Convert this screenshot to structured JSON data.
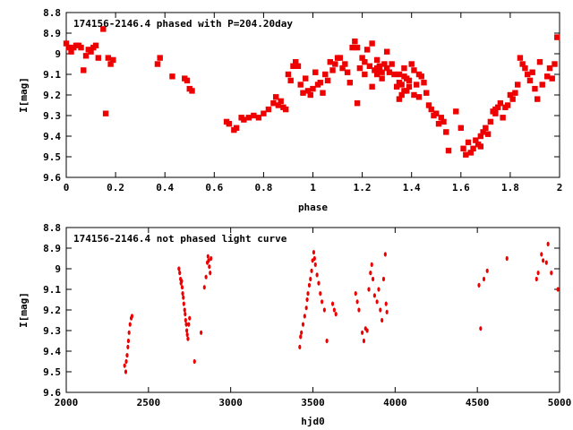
{
  "chart_data": [
    {
      "type": "scatter",
      "title": "174156-2146.4 phased with P=204.20day",
      "xlabel": "phase",
      "ylabel": "I[mag]",
      "xlim": [
        0,
        2
      ],
      "ylim": [
        8.8,
        9.6
      ],
      "y_inverted": true,
      "x_ticks": [
        "0",
        "0.2",
        "0.4",
        "0.6",
        "0.8",
        "1",
        "1.2",
        "1.4",
        "1.6",
        "1.8",
        "2"
      ],
      "y_ticks": [
        "8.8",
        "8.9",
        "9",
        "9.1",
        "9.2",
        "9.3",
        "9.4",
        "9.5",
        "9.6"
      ],
      "grid": false,
      "color": "#ee0000",
      "series": [
        {
          "points": [
            [
              0.0,
              8.95
            ],
            [
              0.01,
              8.97
            ],
            [
              0.02,
              8.99
            ],
            [
              0.03,
              8.97
            ],
            [
              0.05,
              8.96
            ],
            [
              0.06,
              8.97
            ],
            [
              0.07,
              9.08
            ],
            [
              0.09,
              8.98
            ],
            [
              0.11,
              8.97
            ],
            [
              0.13,
              9.02
            ],
            [
              0.15,
              8.88
            ],
            [
              0.16,
              9.29
            ],
            [
              0.17,
              9.02
            ],
            [
              0.18,
              9.05
            ],
            [
              0.19,
              9.03
            ],
            [
              0.37,
              9.05
            ],
            [
              0.38,
              9.02
            ],
            [
              0.43,
              9.11
            ],
            [
              0.48,
              9.12
            ],
            [
              0.49,
              9.13
            ],
            [
              0.5,
              9.17
            ],
            [
              0.51,
              9.18
            ],
            [
              0.65,
              9.33
            ],
            [
              0.66,
              9.34
            ],
            [
              0.68,
              9.37
            ],
            [
              0.69,
              9.36
            ],
            [
              0.71,
              9.31
            ],
            [
              0.72,
              9.32
            ],
            [
              0.74,
              9.31
            ],
            [
              0.76,
              9.3
            ],
            [
              0.78,
              9.31
            ],
            [
              0.8,
              9.29
            ],
            [
              0.85,
              9.21
            ],
            [
              0.86,
              9.25
            ],
            [
              0.87,
              9.23
            ],
            [
              0.88,
              9.26
            ],
            [
              0.89,
              9.27
            ],
            [
              0.9,
              9.1
            ],
            [
              0.91,
              9.13
            ],
            [
              0.92,
              9.06
            ],
            [
              0.93,
              9.04
            ],
            [
              0.94,
              9.06
            ],
            [
              0.96,
              9.19
            ],
            [
              0.98,
              9.18
            ],
            [
              1.0,
              9.17
            ],
            [
              1.02,
              9.15
            ],
            [
              1.03,
              9.14
            ],
            [
              1.05,
              9.1
            ],
            [
              1.07,
              9.04
            ],
            [
              1.09,
              9.05
            ],
            [
              1.1,
              9.02
            ],
            [
              1.12,
              9.07
            ],
            [
              1.14,
              9.09
            ],
            [
              1.16,
              8.97
            ],
            [
              1.17,
              8.94
            ],
            [
              1.18,
              8.97
            ],
            [
              1.19,
              9.07
            ],
            [
              1.2,
              9.02
            ],
            [
              1.21,
              9.04
            ],
            [
              1.22,
              8.98
            ],
            [
              1.23,
              9.06
            ],
            [
              1.24,
              8.95
            ],
            [
              1.25,
              9.08
            ],
            [
              1.26,
              9.1
            ],
            [
              1.27,
              9.06
            ],
            [
              1.28,
              9.12
            ],
            [
              1.29,
              9.05
            ],
            [
              1.3,
              9.07
            ],
            [
              1.31,
              9.09
            ],
            [
              1.32,
              9.05
            ],
            [
              1.34,
              9.16
            ],
            [
              1.35,
              9.14
            ],
            [
              1.36,
              9.2
            ],
            [
              1.37,
              9.18
            ],
            [
              1.38,
              9.12
            ],
            [
              1.39,
              9.13
            ],
            [
              1.4,
              9.05
            ],
            [
              1.41,
              9.08
            ],
            [
              1.42,
              9.15
            ],
            [
              1.43,
              9.21
            ],
            [
              1.44,
              9.11
            ],
            [
              1.45,
              9.14
            ],
            [
              1.47,
              9.25
            ],
            [
              1.48,
              9.27
            ],
            [
              1.5,
              9.29
            ],
            [
              1.52,
              9.31
            ],
            [
              1.53,
              9.33
            ],
            [
              1.55,
              9.47
            ],
            [
              1.6,
              9.36
            ],
            [
              1.62,
              9.49
            ],
            [
              1.63,
              9.43
            ],
            [
              1.65,
              9.46
            ],
            [
              1.66,
              9.42
            ],
            [
              1.67,
              9.44
            ],
            [
              1.68,
              9.4
            ],
            [
              1.69,
              9.38
            ],
            [
              1.7,
              9.36
            ],
            [
              1.72,
              9.33
            ],
            [
              1.73,
              9.28
            ],
            [
              1.74,
              9.27
            ],
            [
              1.75,
              9.26
            ],
            [
              1.76,
              9.24
            ],
            [
              1.78,
              9.26
            ],
            [
              1.79,
              9.25
            ],
            [
              1.82,
              9.19
            ],
            [
              1.83,
              9.15
            ],
            [
              1.84,
              9.02
            ],
            [
              1.85,
              9.05
            ],
            [
              1.86,
              9.07
            ],
            [
              1.87,
              9.1
            ],
            [
              1.88,
              9.13
            ],
            [
              1.9,
              9.17
            ],
            [
              1.91,
              9.22
            ],
            [
              1.93,
              9.15
            ],
            [
              1.95,
              9.11
            ],
            [
              1.96,
              9.07
            ],
            [
              1.98,
              9.05
            ],
            [
              1.99,
              8.92
            ],
            [
              1.13,
              9.05
            ],
            [
              1.15,
              9.14
            ],
            [
              1.18,
              9.24
            ],
            [
              1.21,
              9.1
            ],
            [
              1.24,
              9.16
            ],
            [
              1.26,
              9.03
            ],
            [
              1.28,
              9.09
            ],
            [
              1.3,
              8.99
            ],
            [
              1.33,
              9.1
            ],
            [
              1.35,
              9.22
            ],
            [
              1.37,
              9.07
            ],
            [
              1.39,
              9.16
            ],
            [
              1.41,
              9.2
            ],
            [
              1.43,
              9.1
            ],
            [
              1.46,
              9.19
            ],
            [
              1.49,
              9.3
            ],
            [
              1.51,
              9.34
            ],
            [
              1.54,
              9.38
            ],
            [
              1.58,
              9.28
            ],
            [
              1.61,
              9.46
            ],
            [
              1.64,
              9.48
            ],
            [
              1.68,
              9.45
            ],
            [
              1.71,
              9.39
            ],
            [
              1.74,
              9.29
            ],
            [
              1.77,
              9.31
            ],
            [
              1.8,
              9.2
            ],
            [
              1.81,
              9.22
            ],
            [
              1.89,
              9.09
            ],
            [
              1.92,
              9.04
            ],
            [
              1.97,
              9.12
            ],
            [
              0.95,
              9.15
            ],
            [
              0.97,
              9.12
            ],
            [
              0.99,
              9.2
            ],
            [
              1.01,
              9.09
            ],
            [
              1.04,
              9.19
            ],
            [
              1.06,
              9.13
            ],
            [
              1.08,
              9.08
            ],
            [
              1.11,
              9.02
            ],
            [
              0.82,
              9.27
            ],
            [
              0.84,
              9.24
            ],
            [
              0.04,
              8.96
            ],
            [
              0.08,
              9.01
            ],
            [
              0.1,
              8.99
            ],
            [
              0.12,
              8.96
            ],
            [
              1.35,
              9.1
            ],
            [
              1.36,
              9.15
            ],
            [
              1.37,
              9.11
            ],
            [
              1.38,
              9.18
            ],
            [
              1.26,
              9.07
            ],
            [
              1.27,
              9.08
            ]
          ]
        }
      ]
    },
    {
      "type": "scatter",
      "title": "174156-2146.4 not phased light curve",
      "xlabel": "hjd0",
      "ylabel": "I[mag]",
      "xlim": [
        2000,
        5000
      ],
      "ylim": [
        8.8,
        9.6
      ],
      "y_inverted": true,
      "x_ticks": [
        "2000",
        "2500",
        "3000",
        "3500",
        "4000",
        "4500",
        "5000"
      ],
      "y_ticks": [
        "8.8",
        "8.9",
        "9",
        "9.1",
        "9.2",
        "9.3",
        "9.4",
        "9.5",
        "9.6"
      ],
      "grid": false,
      "color": "#ee0000",
      "series": [
        {
          "points": [
            [
              2355,
              9.47
            ],
            [
              2362,
              9.5
            ],
            [
              2365,
              9.45
            ],
            [
              2370,
              9.42
            ],
            [
              2375,
              9.38
            ],
            [
              2378,
              9.35
            ],
            [
              2382,
              9.31
            ],
            [
              2388,
              9.27
            ],
            [
              2395,
              9.24
            ],
            [
              2400,
              9.23
            ],
            [
              2685,
              9.0
            ],
            [
              2690,
              9.02
            ],
            [
              2695,
              9.05
            ],
            [
              2698,
              9.07
            ],
            [
              2702,
              9.06
            ],
            [
              2705,
              9.09
            ],
            [
              2708,
              9.12
            ],
            [
              2712,
              9.14
            ],
            [
              2715,
              9.17
            ],
            [
              2720,
              9.2
            ],
            [
              2723,
              9.22
            ],
            [
              2726,
              9.25
            ],
            [
              2730,
              9.27
            ],
            [
              2733,
              9.3
            ],
            [
              2736,
              9.32
            ],
            [
              2740,
              9.34
            ],
            [
              2745,
              9.27
            ],
            [
              2750,
              9.24
            ],
            [
              2780,
              9.45
            ],
            [
              2820,
              9.31
            ],
            [
              2840,
              9.09
            ],
            [
              2850,
              9.04
            ],
            [
              2858,
              8.97
            ],
            [
              2862,
              8.94
            ],
            [
              2866,
              8.96
            ],
            [
              2870,
              8.99
            ],
            [
              2875,
              9.02
            ],
            [
              2880,
              8.95
            ],
            [
              3420,
              9.38
            ],
            [
              3425,
              9.33
            ],
            [
              3430,
              9.31
            ],
            [
              3440,
              9.27
            ],
            [
              3450,
              9.23
            ],
            [
              3460,
              9.19
            ],
            [
              3465,
              9.15
            ],
            [
              3470,
              9.12
            ],
            [
              3478,
              9.08
            ],
            [
              3485,
              9.05
            ],
            [
              3492,
              9.01
            ],
            [
              3498,
              8.96
            ],
            [
              3505,
              8.92
            ],
            [
              3510,
              8.95
            ],
            [
              3515,
              8.98
            ],
            [
              3525,
              9.03
            ],
            [
              3535,
              9.07
            ],
            [
              3545,
              9.12
            ],
            [
              3555,
              9.16
            ],
            [
              3570,
              9.2
            ],
            [
              3585,
              9.35
            ],
            [
              3620,
              9.17
            ],
            [
              3630,
              9.2
            ],
            [
              3640,
              9.22
            ],
            [
              3760,
              9.12
            ],
            [
              3770,
              9.16
            ],
            [
              3780,
              9.2
            ],
            [
              3800,
              9.31
            ],
            [
              3810,
              9.35
            ],
            [
              3820,
              9.29
            ],
            [
              3830,
              9.3
            ],
            [
              3840,
              9.1
            ],
            [
              3850,
              9.02
            ],
            [
              3858,
              8.98
            ],
            [
              3865,
              9.05
            ],
            [
              3875,
              9.13
            ],
            [
              3890,
              9.16
            ],
            [
              3900,
              9.1
            ],
            [
              3910,
              9.2
            ],
            [
              3920,
              9.25
            ],
            [
              3930,
              9.05
            ],
            [
              3940,
              8.93
            ],
            [
              3945,
              9.17
            ],
            [
              3950,
              9.21
            ],
            [
              4510,
              9.08
            ],
            [
              4520,
              9.29
            ],
            [
              4540,
              9.05
            ],
            [
              4560,
              9.01
            ],
            [
              4680,
              8.95
            ],
            [
              4860,
              9.05
            ],
            [
              4870,
              9.02
            ],
            [
              4890,
              8.93
            ],
            [
              4900,
              8.96
            ],
            [
              4920,
              8.97
            ],
            [
              4930,
              8.88
            ],
            [
              4950,
              9.02
            ],
            [
              4990,
              9.1
            ]
          ]
        }
      ]
    }
  ]
}
